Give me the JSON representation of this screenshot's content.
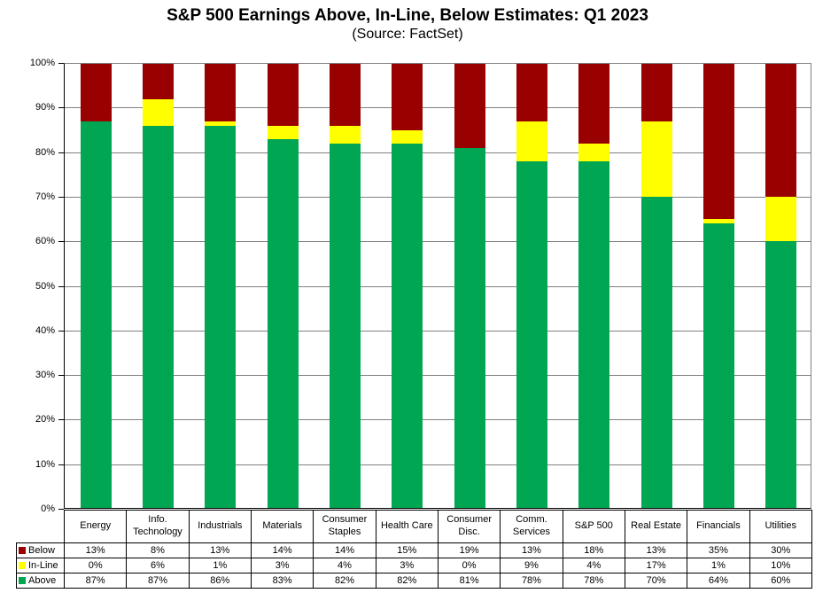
{
  "chart_data": {
    "type": "bar",
    "stacked": true,
    "title": "S&P 500 Earnings Above, In-Line, Below Estimates: Q1 2023",
    "subtitle": "(Source: FactSet)",
    "categories": [
      "Energy",
      "Info.\nTechnology",
      "Industrials",
      "Materials",
      "Consumer\nStaples",
      "Health Care",
      "Consumer\nDisc.",
      "Comm.\nServices",
      "S&P 500",
      "Real Estate",
      "Financials",
      "Utilities"
    ],
    "series": [
      {
        "name": "Below",
        "color": "#990000",
        "values": [
          13,
          8,
          13,
          14,
          14,
          15,
          19,
          13,
          18,
          13,
          35,
          30
        ]
      },
      {
        "name": "In-Line",
        "color": "#FFFF00",
        "values": [
          0,
          6,
          1,
          3,
          4,
          3,
          0,
          9,
          4,
          17,
          1,
          10
        ]
      },
      {
        "name": "Above",
        "color": "#00A651",
        "values": [
          87,
          87,
          86,
          83,
          82,
          82,
          81,
          78,
          78,
          70,
          64,
          60
        ]
      }
    ],
    "unit": "%",
    "ylim": [
      0,
      100
    ],
    "ytick_step": 10,
    "ytick_labels": [
      "0%",
      "10%",
      "20%",
      "30%",
      "40%",
      "50%",
      "60%",
      "70%",
      "80%",
      "90%",
      "100%"
    ],
    "grid": true,
    "legend_position": "table-left",
    "colors": {
      "grid": "#808080",
      "frame": "#000000",
      "background": "#FFFFFF"
    }
  }
}
